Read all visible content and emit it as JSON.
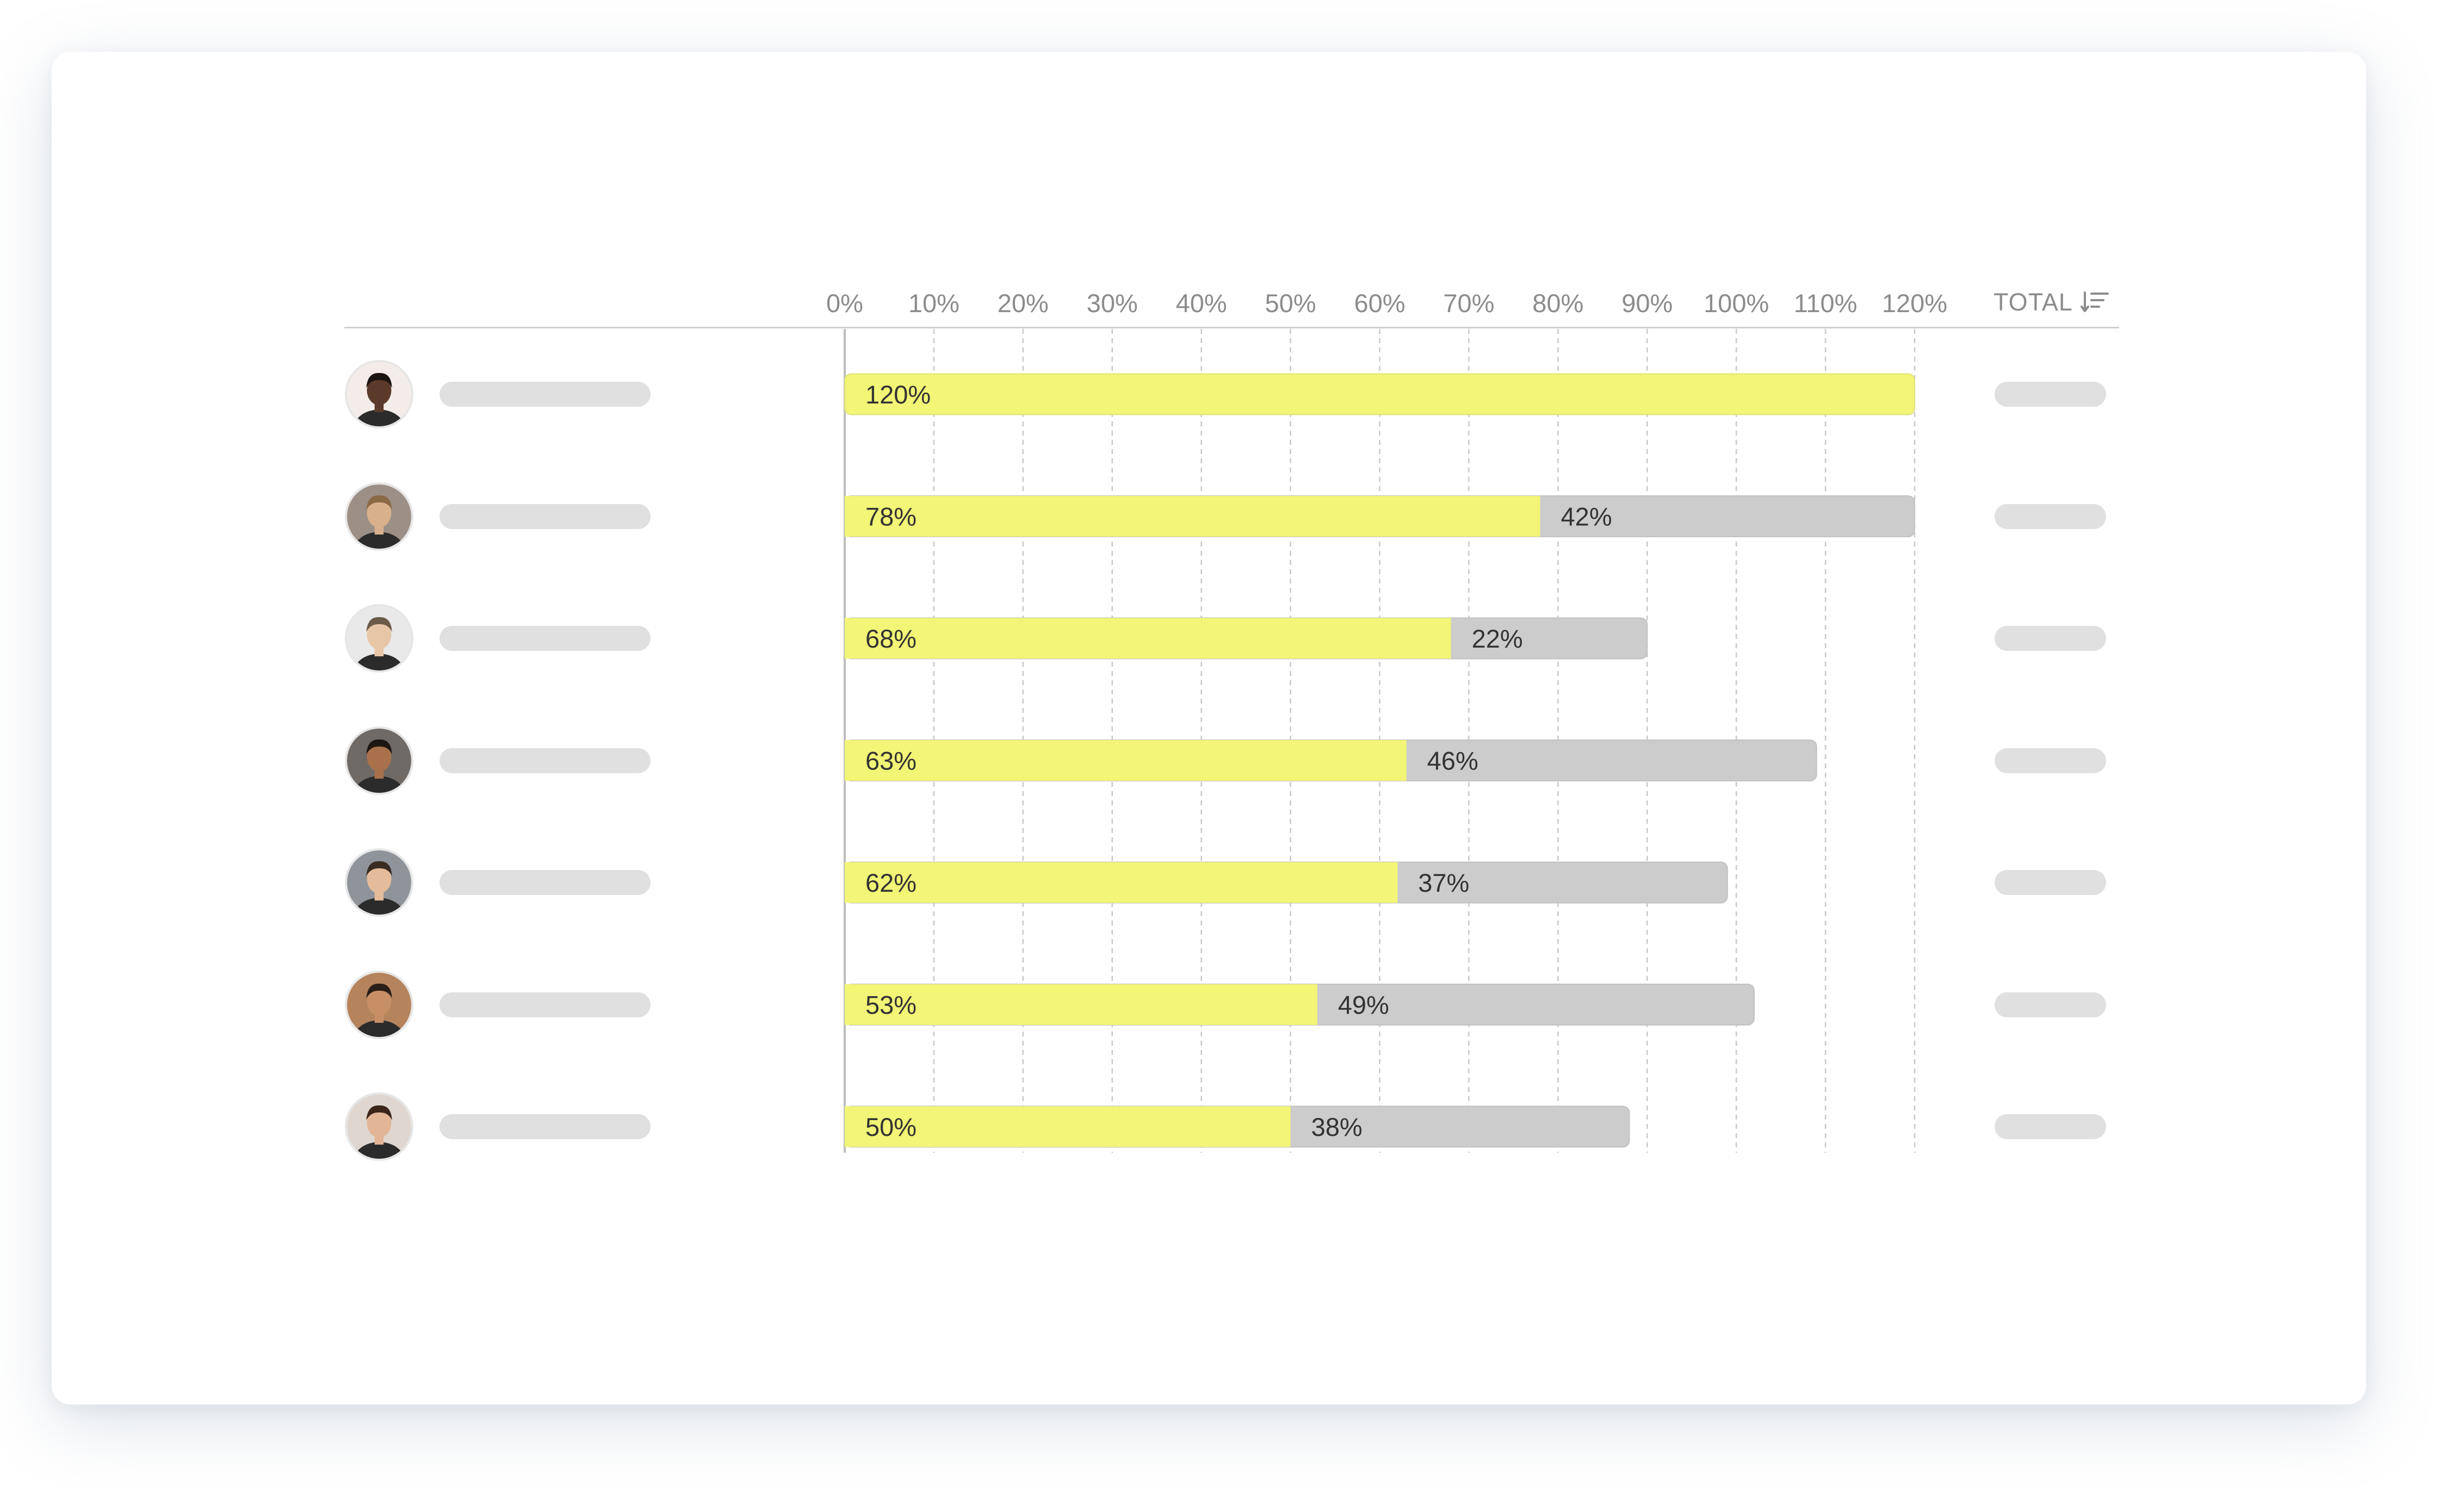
{
  "chart_data": {
    "type": "bar",
    "orientation": "horizontal",
    "stacked": true,
    "x_ticks": [
      "0%",
      "10%",
      "20%",
      "30%",
      "40%",
      "50%",
      "60%",
      "70%",
      "80%",
      "90%",
      "100%",
      "110%",
      "120%"
    ],
    "xlim": [
      0,
      120
    ],
    "grid": true,
    "total_header": "TOTAL",
    "series": [
      {
        "values": [
          120,
          78,
          68,
          63,
          62,
          53,
          50
        ],
        "labels": [
          "120%",
          "78%",
          "68%",
          "63%",
          "62%",
          "53%",
          "50%"
        ],
        "color": "#f2f575"
      },
      {
        "values": [
          0,
          42,
          22,
          46,
          37,
          49,
          38
        ],
        "labels": [
          "",
          "42%",
          "22%",
          "46%",
          "37%",
          "49%",
          "38%"
        ],
        "color": "#cccccc"
      }
    ]
  },
  "rows": [
    {
      "avatar_tone": "#5b3a2a",
      "bg": "#f3ece8",
      "hair": "#1c1410"
    },
    {
      "avatar_tone": "#d9b08c",
      "bg": "#9c8f86",
      "hair": "#8a6a45"
    },
    {
      "avatar_tone": "#e7c6a8",
      "bg": "#e9e9e9",
      "hair": "#6b5a48"
    },
    {
      "avatar_tone": "#a8714c",
      "bg": "#6f6a66",
      "hair": "#1d1712"
    },
    {
      "avatar_tone": "#e4bc9b",
      "bg": "#8f949a",
      "hair": "#3a2c22"
    },
    {
      "avatar_tone": "#c78f66",
      "bg": "#b5835c",
      "hair": "#2a1f18"
    },
    {
      "avatar_tone": "#e2b596",
      "bg": "#ded6cf",
      "hair": "#3b2418"
    }
  ],
  "icons": {
    "sort": "sort-descending-icon"
  },
  "colors": {
    "primary_bar": "#f2f575",
    "secondary_bar": "#cccccc",
    "grid": "#c8c8c8"
  }
}
